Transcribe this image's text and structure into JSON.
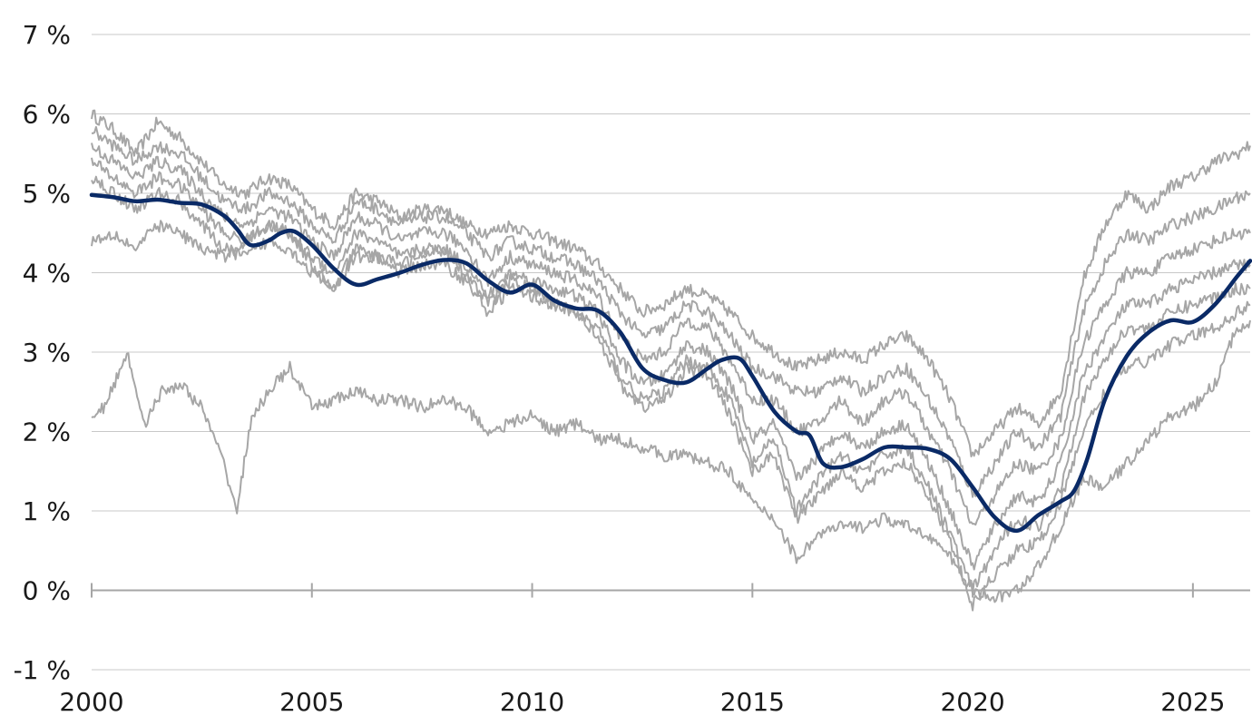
{
  "chart_data": {
    "type": "line",
    "title": "",
    "xlabel": "",
    "ylabel": "",
    "x_range": [
      2000.0,
      2026.3
    ],
    "ylim": [
      -1,
      7
    ],
    "grid": true,
    "legend": "none",
    "y_ticks": [
      {
        "value": -1,
        "label": "-1 %"
      },
      {
        "value": 0,
        "label": "0 %"
      },
      {
        "value": 1,
        "label": "1 %"
      },
      {
        "value": 2,
        "label": "2 %"
      },
      {
        "value": 3,
        "label": "3 %"
      },
      {
        "value": 4,
        "label": "4 %"
      },
      {
        "value": 5,
        "label": "5 %"
      },
      {
        "value": 6,
        "label": "6 %"
      },
      {
        "value": 7,
        "label": "7 %"
      }
    ],
    "x_ticks": [
      {
        "value": 2000,
        "label": "2000"
      },
      {
        "value": 2005,
        "label": "2005"
      },
      {
        "value": 2010,
        "label": "2010"
      },
      {
        "value": 2015,
        "label": "2015"
      },
      {
        "value": 2020,
        "label": "2020"
      },
      {
        "value": 2025,
        "label": "2025"
      }
    ],
    "colors": {
      "highlight": "#0a2a66",
      "other": "#a6a6a6",
      "grid": "#c8c8c8"
    },
    "highlight_series": {
      "x": [
        2000.0,
        2000.5,
        2001.0,
        2001.5,
        2002.0,
        2002.5,
        2003.0,
        2003.3,
        2003.6,
        2004.0,
        2004.3,
        2004.6,
        2005.0,
        2005.5,
        2006.0,
        2006.5,
        2007.0,
        2007.5,
        2008.0,
        2008.5,
        2009.0,
        2009.5,
        2010.0,
        2010.5,
        2011.0,
        2011.5,
        2012.0,
        2012.5,
        2013.0,
        2013.5,
        2014.0,
        2014.3,
        2014.7,
        2015.0,
        2015.5,
        2016.0,
        2016.3,
        2016.6,
        2017.0,
        2017.5,
        2018.0,
        2018.5,
        2019.0,
        2019.5,
        2020.0,
        2020.5,
        2021.0,
        2021.5,
        2022.0,
        2022.3,
        2022.6,
        2023.0,
        2023.5,
        2024.0,
        2024.5,
        2025.0,
        2025.5,
        2026.0,
        2026.3
      ],
      "y": [
        4.98,
        4.95,
        4.9,
        4.92,
        4.88,
        4.86,
        4.72,
        4.55,
        4.35,
        4.4,
        4.5,
        4.52,
        4.35,
        4.05,
        3.85,
        3.92,
        4.0,
        4.1,
        4.16,
        4.12,
        3.9,
        3.75,
        3.85,
        3.65,
        3.55,
        3.52,
        3.25,
        2.8,
        2.65,
        2.62,
        2.8,
        2.9,
        2.92,
        2.7,
        2.25,
        2.0,
        1.95,
        1.6,
        1.55,
        1.65,
        1.8,
        1.8,
        1.78,
        1.65,
        1.3,
        0.92,
        0.75,
        0.95,
        1.12,
        1.25,
        1.65,
        2.4,
        2.95,
        3.25,
        3.4,
        3.38,
        3.6,
        3.95,
        4.15
      ]
    },
    "other_series": [
      {
        "x": [
          2000.0,
          2000.5,
          2001.0,
          2001.5,
          2002.0,
          2002.5,
          2003.0,
          2003.5,
          2004.0,
          2004.5,
          2005.0,
          2005.5,
          2006.0,
          2006.5,
          2007.0,
          2007.5,
          2008.0,
          2008.5,
          2009.0,
          2009.5,
          2010.0,
          2010.5,
          2011.0,
          2011.5,
          2012.0,
          2012.5,
          2013.0,
          2013.5,
          2014.0,
          2014.5,
          2015.0,
          2015.5,
          2016.0,
          2016.5,
          2017.0,
          2017.5,
          2018.0,
          2018.5,
          2019.0,
          2019.5,
          2020.0,
          2020.5,
          2021.0,
          2021.5,
          2022.0,
          2022.5,
          2023.0,
          2023.5,
          2024.0,
          2024.5,
          2025.0,
          2025.5,
          2026.0,
          2026.3
        ],
        "y": [
          6.0,
          5.8,
          5.5,
          5.9,
          5.7,
          5.4,
          5.1,
          5.0,
          5.2,
          5.1,
          4.8,
          4.6,
          5.0,
          4.9,
          4.7,
          4.8,
          4.8,
          4.6,
          4.5,
          4.6,
          4.5,
          4.4,
          4.3,
          4.1,
          3.8,
          3.5,
          3.6,
          3.8,
          3.7,
          3.5,
          3.2,
          3.0,
          2.8,
          2.9,
          3.0,
          2.9,
          3.1,
          3.2,
          2.9,
          2.4,
          1.7,
          2.0,
          2.3,
          2.1,
          2.5,
          3.9,
          4.6,
          5.0,
          4.8,
          5.1,
          5.2,
          5.4,
          5.5,
          5.6
        ]
      },
      {
        "x": [
          2000.0,
          2000.5,
          2001.0,
          2001.5,
          2002.0,
          2002.5,
          2003.0,
          2003.5,
          2004.0,
          2004.5,
          2005.0,
          2005.5,
          2006.0,
          2006.5,
          2007.0,
          2007.5,
          2008.0,
          2008.5,
          2009.0,
          2009.5,
          2010.0,
          2010.5,
          2011.0,
          2011.5,
          2012.0,
          2012.5,
          2013.0,
          2013.5,
          2014.0,
          2014.5,
          2015.0,
          2015.5,
          2016.0,
          2016.5,
          2017.0,
          2017.5,
          2018.0,
          2018.5,
          2019.0,
          2019.5,
          2020.0,
          2020.5,
          2021.0,
          2021.5,
          2022.0,
          2022.5,
          2023.0,
          2023.5,
          2024.0,
          2024.5,
          2025.0,
          2025.5,
          2026.0,
          2026.3
        ],
        "y": [
          5.8,
          5.6,
          5.4,
          5.6,
          5.5,
          5.2,
          4.9,
          4.8,
          5.0,
          4.9,
          4.6,
          4.4,
          4.9,
          4.8,
          4.6,
          4.7,
          4.7,
          4.5,
          4.2,
          4.4,
          4.3,
          4.2,
          4.1,
          3.9,
          3.5,
          3.2,
          3.3,
          3.6,
          3.5,
          3.2,
          2.8,
          2.7,
          2.5,
          2.5,
          2.7,
          2.5,
          2.7,
          2.8,
          2.4,
          1.9,
          1.2,
          1.6,
          2.0,
          1.8,
          2.2,
          3.5,
          4.1,
          4.5,
          4.4,
          4.6,
          4.7,
          4.8,
          4.95,
          5.0
        ]
      },
      {
        "x": [
          2000.0,
          2000.5,
          2001.0,
          2001.5,
          2002.0,
          2002.5,
          2003.0,
          2003.5,
          2004.0,
          2004.5,
          2005.0,
          2005.5,
          2006.0,
          2006.5,
          2007.0,
          2007.5,
          2008.0,
          2008.5,
          2009.0,
          2009.5,
          2010.0,
          2010.5,
          2011.0,
          2011.5,
          2012.0,
          2012.5,
          2013.0,
          2013.5,
          2014.0,
          2014.5,
          2015.0,
          2015.5,
          2016.0,
          2016.5,
          2017.0,
          2017.5,
          2018.0,
          2018.5,
          2019.0,
          2019.5,
          2020.0,
          2020.5,
          2021.0,
          2021.5,
          2022.0,
          2022.5,
          2023.0,
          2023.5,
          2024.0,
          2024.5,
          2025.0,
          2025.5,
          2026.0,
          2026.3
        ],
        "y": [
          5.6,
          5.4,
          5.2,
          5.4,
          5.3,
          5.0,
          4.7,
          4.6,
          4.8,
          4.7,
          4.4,
          4.2,
          4.7,
          4.6,
          4.4,
          4.5,
          4.5,
          4.3,
          3.9,
          4.2,
          4.1,
          4.0,
          3.9,
          3.7,
          3.2,
          2.9,
          3.0,
          3.4,
          3.3,
          2.9,
          2.4,
          2.4,
          2.0,
          2.1,
          2.4,
          2.1,
          2.4,
          2.5,
          2.0,
          1.5,
          0.8,
          1.2,
          1.6,
          1.5,
          1.9,
          3.1,
          3.6,
          4.0,
          4.0,
          4.2,
          4.3,
          4.4,
          4.5,
          4.5
        ]
      },
      {
        "x": [
          2000.0,
          2000.5,
          2001.0,
          2001.5,
          2002.0,
          2002.5,
          2003.0,
          2003.5,
          2004.0,
          2004.5,
          2005.0,
          2005.5,
          2006.0,
          2006.5,
          2007.0,
          2007.5,
          2008.0,
          2008.5,
          2009.0,
          2009.5,
          2010.0,
          2010.5,
          2011.0,
          2011.5,
          2012.0,
          2012.5,
          2013.0,
          2013.5,
          2014.0,
          2014.5,
          2015.0,
          2015.5,
          2016.0,
          2016.5,
          2017.0,
          2017.5,
          2018.0,
          2018.5,
          2019.0,
          2019.5,
          2020.0,
          2020.5,
          2021.0,
          2021.5,
          2022.0,
          2022.5,
          2023.0,
          2023.5,
          2024.0,
          2024.5,
          2025.0,
          2025.5,
          2026.0,
          2026.3
        ],
        "y": [
          5.4,
          5.2,
          5.0,
          5.2,
          5.1,
          4.8,
          4.5,
          4.4,
          4.6,
          4.5,
          4.2,
          4.0,
          4.5,
          4.4,
          4.2,
          4.3,
          4.3,
          4.1,
          3.7,
          4.0,
          3.9,
          3.8,
          3.7,
          3.5,
          2.9,
          2.6,
          2.7,
          3.1,
          3.0,
          2.6,
          1.9,
          2.1,
          1.4,
          1.7,
          2.0,
          1.8,
          2.0,
          2.1,
          1.6,
          1.0,
          0.3,
          0.8,
          1.2,
          1.1,
          1.6,
          2.7,
          3.2,
          3.6,
          3.6,
          3.8,
          3.9,
          4.0,
          4.1,
          4.1
        ]
      },
      {
        "x": [
          2000.0,
          2000.5,
          2001.0,
          2001.5,
          2002.0,
          2002.5,
          2003.0,
          2003.5,
          2004.0,
          2004.5,
          2005.0,
          2005.5,
          2006.0,
          2006.5,
          2007.0,
          2007.5,
          2008.0,
          2008.5,
          2009.0,
          2009.5,
          2010.0,
          2010.5,
          2011.0,
          2011.5,
          2012.0,
          2012.5,
          2013.0,
          2013.5,
          2014.0,
          2014.5,
          2015.0,
          2015.5,
          2016.0,
          2016.5,
          2017.0,
          2017.5,
          2018.0,
          2018.5,
          2019.0,
          2019.5,
          2020.0,
          2020.5,
          2021.0,
          2021.5,
          2022.0,
          2022.5,
          2023.0,
          2023.5,
          2024.0,
          2024.5,
          2025.0,
          2025.5,
          2026.0,
          2026.3
        ],
        "y": [
          5.2,
          5.0,
          4.8,
          5.0,
          4.9,
          4.6,
          4.3,
          4.2,
          4.4,
          4.3,
          4.0,
          3.8,
          4.3,
          4.2,
          4.0,
          4.1,
          4.1,
          3.9,
          3.5,
          3.8,
          3.7,
          3.6,
          3.5,
          3.3,
          2.7,
          2.4,
          2.5,
          2.9,
          2.8,
          2.4,
          1.6,
          1.9,
          1.0,
          1.4,
          1.7,
          1.5,
          1.7,
          1.8,
          1.3,
          0.7,
          0.0,
          0.5,
          0.9,
          0.8,
          1.3,
          2.4,
          2.9,
          3.3,
          3.3,
          3.5,
          3.6,
          3.7,
          3.8,
          3.8
        ]
      },
      {
        "x": [
          2000.0,
          2000.5,
          2001.0,
          2001.5,
          2002.0,
          2002.5,
          2003.0,
          2003.5,
          2004.0,
          2004.5,
          2005.0,
          2005.5,
          2006.0,
          2006.5,
          2007.0,
          2007.5,
          2008.0,
          2008.5,
          2009.0,
          2009.5,
          2010.0,
          2010.5,
          2011.0,
          2011.5,
          2012.0,
          2012.5,
          2013.0,
          2013.5,
          2014.0,
          2014.5,
          2015.0,
          2015.5,
          2016.0,
          2016.5,
          2017.0,
          2017.5,
          2018.0,
          2018.5,
          2019.0,
          2019.5,
          2020.0,
          2020.5,
          2021.0,
          2021.5,
          2022.0,
          2022.5,
          2023.0,
          2023.5,
          2024.0,
          2024.5,
          2025.0,
          2025.5,
          2026.0,
          2026.3
        ],
        "y": [
          4.4,
          4.5,
          4.3,
          4.6,
          4.5,
          4.3,
          4.2,
          4.4,
          4.6,
          4.5,
          4.1,
          3.8,
          4.2,
          4.2,
          4.1,
          4.2,
          4.3,
          4.0,
          3.6,
          3.9,
          3.8,
          3.6,
          3.5,
          3.2,
          2.6,
          2.3,
          2.4,
          2.8,
          2.7,
          2.2,
          1.5,
          1.7,
          0.9,
          1.2,
          1.5,
          1.3,
          1.5,
          1.6,
          1.2,
          0.6,
          -0.2,
          0.2,
          0.5,
          0.6,
          1.1,
          2.0,
          2.5,
          2.8,
          2.9,
          3.1,
          3.2,
          3.3,
          3.5,
          3.6
        ]
      },
      {
        "x": [
          2000.0,
          2000.3,
          2000.8,
          2001.2,
          2001.6,
          2002.0,
          2002.5,
          2003.0,
          2003.3,
          2003.6,
          2004.0,
          2004.5,
          2005.0,
          2005.5,
          2006.0,
          2006.5,
          2007.0,
          2007.5,
          2008.0,
          2008.5,
          2009.0,
          2009.5,
          2010.0,
          2010.5,
          2011.0,
          2011.5,
          2012.0,
          2012.5,
          2013.0,
          2013.5,
          2014.0,
          2014.5,
          2015.0,
          2015.5,
          2016.0,
          2016.5,
          2017.0,
          2017.5,
          2018.0,
          2018.5,
          2019.0,
          2019.5,
          2020.0,
          2020.5,
          2021.0,
          2021.5,
          2022.0,
          2022.5,
          2023.0,
          2023.5,
          2024.0,
          2024.5,
          2025.0,
          2025.5,
          2026.0,
          2026.3
        ],
        "y": [
          2.2,
          2.3,
          3.0,
          2.1,
          2.5,
          2.6,
          2.3,
          1.6,
          1.0,
          2.1,
          2.5,
          2.8,
          2.3,
          2.4,
          2.5,
          2.4,
          2.4,
          2.3,
          2.4,
          2.3,
          2.0,
          2.1,
          2.2,
          2.0,
          2.1,
          1.9,
          1.9,
          1.8,
          1.7,
          1.7,
          1.6,
          1.5,
          1.1,
          0.9,
          0.4,
          0.7,
          0.8,
          0.8,
          0.9,
          0.8,
          0.7,
          0.4,
          0.0,
          -0.1,
          0.0,
          0.3,
          0.8,
          1.4,
          1.3,
          1.6,
          1.9,
          2.2,
          2.3,
          2.6,
          3.3,
          3.4
        ]
      }
    ]
  }
}
